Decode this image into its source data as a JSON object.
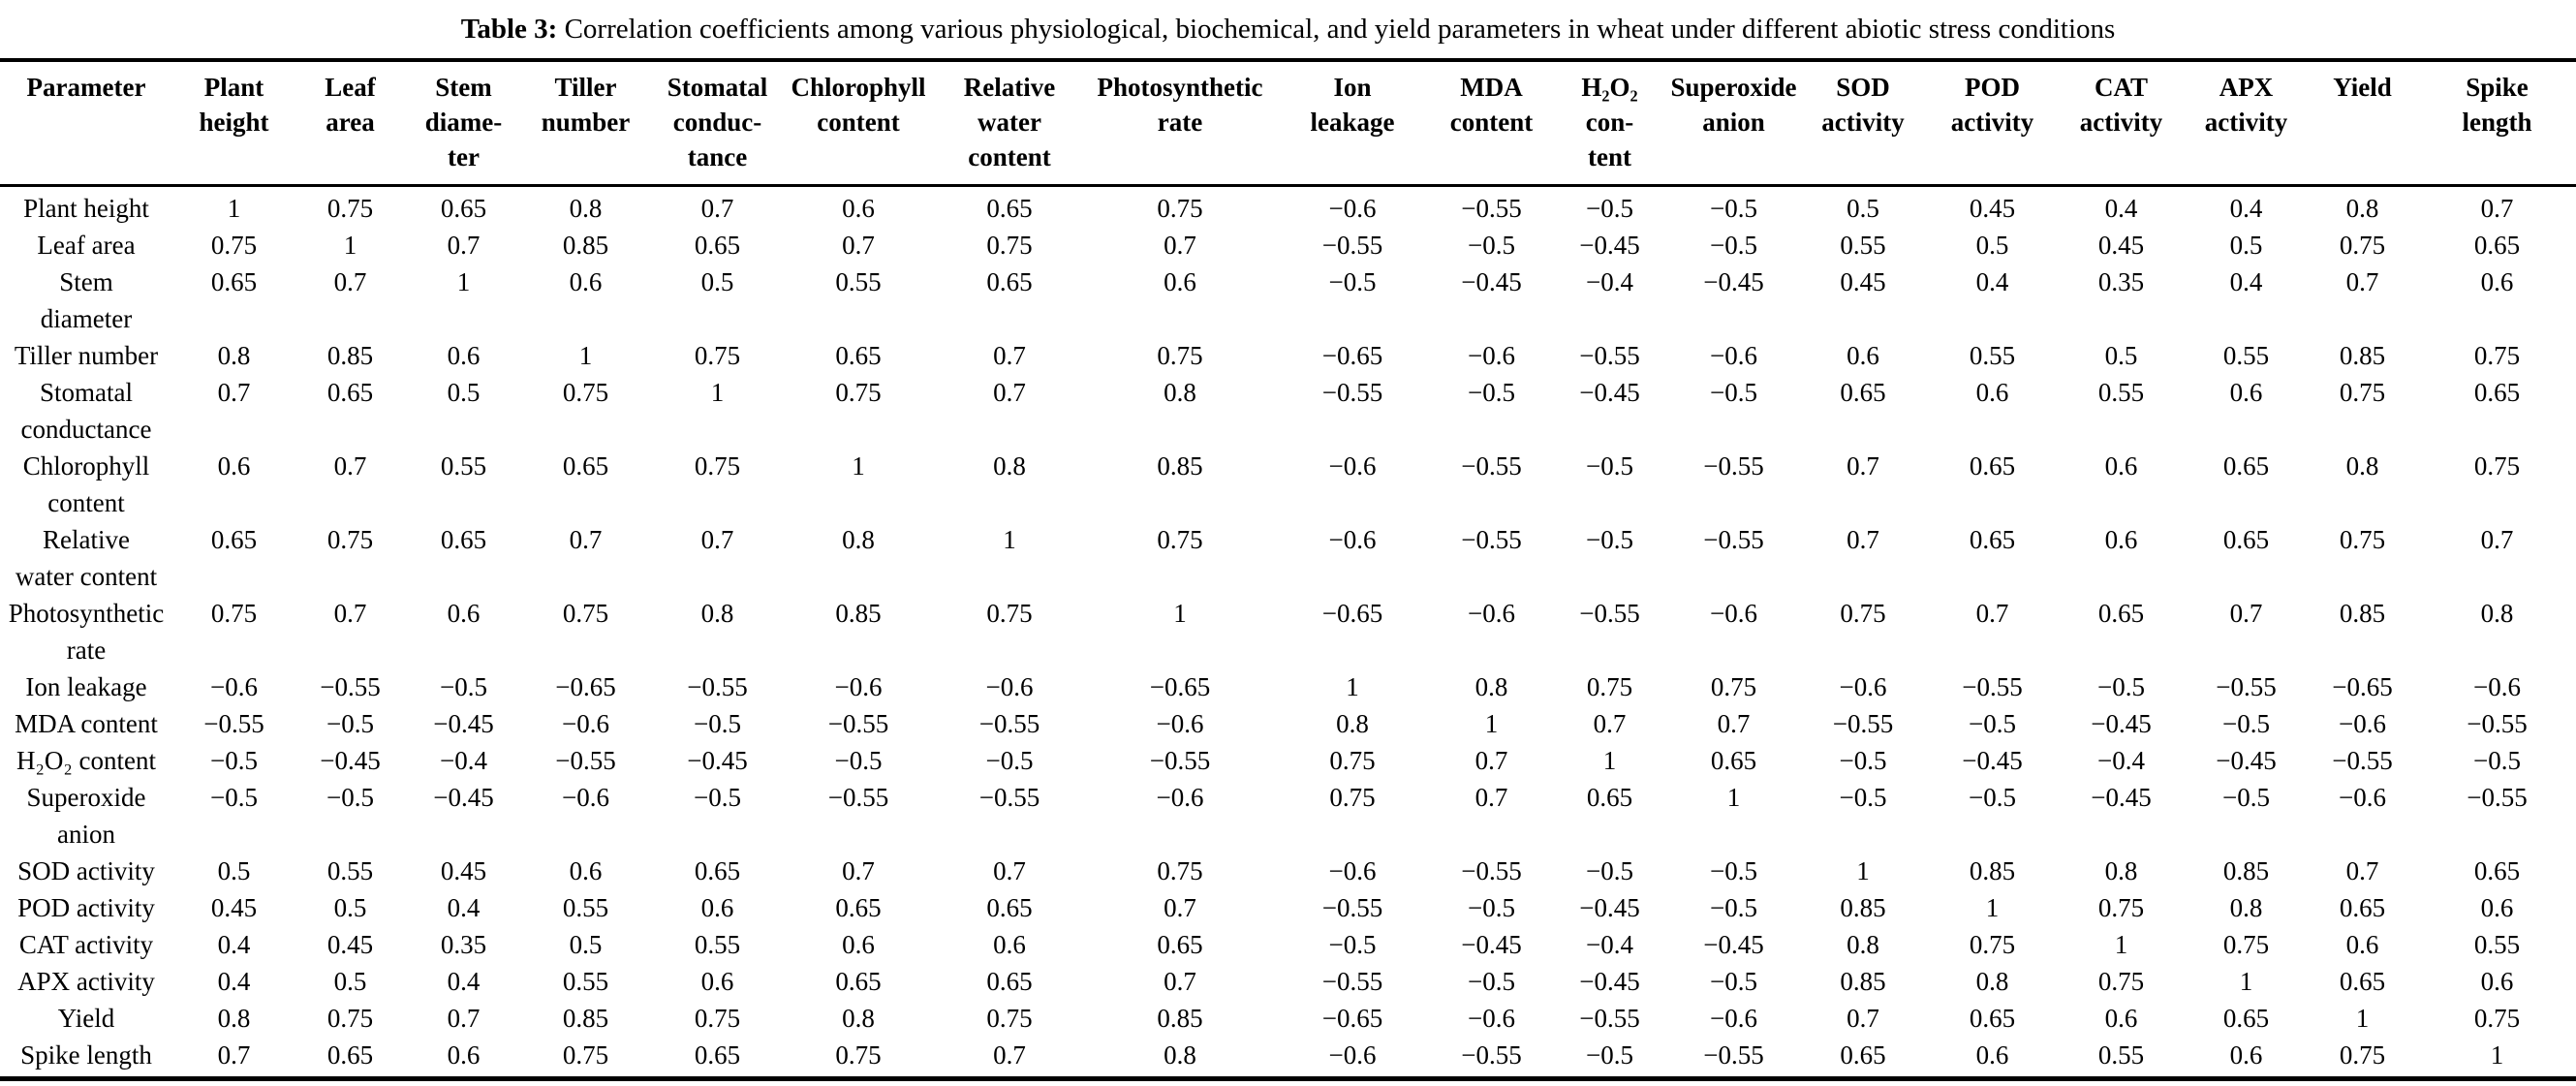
{
  "caption": {
    "label": "Table 3:",
    "text": "Correlation coefficients among various physiological, biochemical, and yield parameters in wheat under different abiotic stress conditions"
  },
  "table": {
    "columns": [
      {
        "lines": [
          "Parameter"
        ]
      },
      {
        "lines": [
          "Plant",
          "height"
        ]
      },
      {
        "lines": [
          "Leaf",
          "area"
        ]
      },
      {
        "lines": [
          "Stem",
          "diame-",
          "ter"
        ]
      },
      {
        "lines": [
          "Tiller",
          "number"
        ]
      },
      {
        "lines": [
          "Stomatal",
          "conduc-",
          "tance"
        ]
      },
      {
        "lines": [
          "Chlorophyll",
          "content"
        ]
      },
      {
        "lines": [
          "Relative",
          "water",
          "content"
        ]
      },
      {
        "lines": [
          "Photosynthetic",
          "rate"
        ]
      },
      {
        "lines": [
          "Ion",
          "leakage"
        ]
      },
      {
        "lines": [
          "MDA",
          "content"
        ]
      },
      {
        "lines": [
          "H₂O₂",
          "con-",
          "tent"
        ]
      },
      {
        "lines": [
          "Superoxide",
          "anion"
        ]
      },
      {
        "lines": [
          "SOD",
          "activity"
        ]
      },
      {
        "lines": [
          "POD",
          "activity"
        ]
      },
      {
        "lines": [
          "CAT",
          "activity"
        ]
      },
      {
        "lines": [
          "APX",
          "activity"
        ]
      },
      {
        "lines": [
          "Yield"
        ]
      },
      {
        "lines": [
          "Spike",
          "length"
        ]
      }
    ],
    "rows": [
      {
        "label_lines": [
          "Plant height"
        ],
        "values": [
          "1",
          "0.75",
          "0.65",
          "0.8",
          "0.7",
          "0.6",
          "0.65",
          "0.75",
          "−0.6",
          "−0.55",
          "−0.5",
          "−0.5",
          "0.5",
          "0.45",
          "0.4",
          "0.4",
          "0.8",
          "0.7"
        ]
      },
      {
        "label_lines": [
          "Leaf area"
        ],
        "values": [
          "0.75",
          "1",
          "0.7",
          "0.85",
          "0.65",
          "0.7",
          "0.75",
          "0.7",
          "−0.55",
          "−0.5",
          "−0.45",
          "−0.5",
          "0.55",
          "0.5",
          "0.45",
          "0.5",
          "0.75",
          "0.65"
        ]
      },
      {
        "label_lines": [
          "Stem",
          "diameter"
        ],
        "values": [
          "0.65",
          "0.7",
          "1",
          "0.6",
          "0.5",
          "0.55",
          "0.65",
          "0.6",
          "−0.5",
          "−0.45",
          "−0.4",
          "−0.45",
          "0.45",
          "0.4",
          "0.35",
          "0.4",
          "0.7",
          "0.6"
        ]
      },
      {
        "label_lines": [
          "Tiller number"
        ],
        "values": [
          "0.8",
          "0.85",
          "0.6",
          "1",
          "0.75",
          "0.65",
          "0.7",
          "0.75",
          "−0.65",
          "−0.6",
          "−0.55",
          "−0.6",
          "0.6",
          "0.55",
          "0.5",
          "0.55",
          "0.85",
          "0.75"
        ]
      },
      {
        "label_lines": [
          "Stomatal",
          "conductance"
        ],
        "values": [
          "0.7",
          "0.65",
          "0.5",
          "0.75",
          "1",
          "0.75",
          "0.7",
          "0.8",
          "−0.55",
          "−0.5",
          "−0.45",
          "−0.5",
          "0.65",
          "0.6",
          "0.55",
          "0.6",
          "0.75",
          "0.65"
        ]
      },
      {
        "label_lines": [
          "Chlorophyll",
          "content"
        ],
        "values": [
          "0.6",
          "0.7",
          "0.55",
          "0.65",
          "0.75",
          "1",
          "0.8",
          "0.85",
          "−0.6",
          "−0.55",
          "−0.5",
          "−0.55",
          "0.7",
          "0.65",
          "0.6",
          "0.65",
          "0.8",
          "0.75"
        ]
      },
      {
        "label_lines": [
          "Relative",
          "water content"
        ],
        "values": [
          "0.65",
          "0.75",
          "0.65",
          "0.7",
          "0.7",
          "0.8",
          "1",
          "0.75",
          "−0.6",
          "−0.55",
          "−0.5",
          "−0.55",
          "0.7",
          "0.65",
          "0.6",
          "0.65",
          "0.75",
          "0.7"
        ]
      },
      {
        "label_lines": [
          "Photosynthetic",
          "rate"
        ],
        "values": [
          "0.75",
          "0.7",
          "0.6",
          "0.75",
          "0.8",
          "0.85",
          "0.75",
          "1",
          "−0.65",
          "−0.6",
          "−0.55",
          "−0.6",
          "0.75",
          "0.7",
          "0.65",
          "0.7",
          "0.85",
          "0.8"
        ]
      },
      {
        "label_lines": [
          "Ion leakage"
        ],
        "values": [
          "−0.6",
          "−0.55",
          "−0.5",
          "−0.65",
          "−0.55",
          "−0.6",
          "−0.6",
          "−0.65",
          "1",
          "0.8",
          "0.75",
          "0.75",
          "−0.6",
          "−0.55",
          "−0.5",
          "−0.55",
          "−0.65",
          "−0.6"
        ]
      },
      {
        "label_lines": [
          "MDA content"
        ],
        "values": [
          "−0.55",
          "−0.5",
          "−0.45",
          "−0.6",
          "−0.5",
          "−0.55",
          "−0.55",
          "−0.6",
          "0.8",
          "1",
          "0.7",
          "0.7",
          "−0.55",
          "−0.5",
          "−0.45",
          "−0.5",
          "−0.6",
          "−0.55"
        ]
      },
      {
        "label_lines": [
          "H₂O₂ content"
        ],
        "values": [
          "−0.5",
          "−0.45",
          "−0.4",
          "−0.55",
          "−0.45",
          "−0.5",
          "−0.5",
          "−0.55",
          "0.75",
          "0.7",
          "1",
          "0.65",
          "−0.5",
          "−0.45",
          "−0.4",
          "−0.45",
          "−0.55",
          "−0.5"
        ]
      },
      {
        "label_lines": [
          "Superoxide",
          "anion"
        ],
        "values": [
          "−0.5",
          "−0.5",
          "−0.45",
          "−0.6",
          "−0.5",
          "−0.55",
          "−0.55",
          "−0.6",
          "0.75",
          "0.7",
          "0.65",
          "1",
          "−0.5",
          "−0.5",
          "−0.45",
          "−0.5",
          "−0.6",
          "−0.55"
        ]
      },
      {
        "label_lines": [
          "SOD activity"
        ],
        "values": [
          "0.5",
          "0.55",
          "0.45",
          "0.6",
          "0.65",
          "0.7",
          "0.7",
          "0.75",
          "−0.6",
          "−0.55",
          "−0.5",
          "−0.5",
          "1",
          "0.85",
          "0.8",
          "0.85",
          "0.7",
          "0.65"
        ]
      },
      {
        "label_lines": [
          "POD activity"
        ],
        "values": [
          "0.45",
          "0.5",
          "0.4",
          "0.55",
          "0.6",
          "0.65",
          "0.65",
          "0.7",
          "−0.55",
          "−0.5",
          "−0.45",
          "−0.5",
          "0.85",
          "1",
          "0.75",
          "0.8",
          "0.65",
          "0.6"
        ]
      },
      {
        "label_lines": [
          "CAT activity"
        ],
        "values": [
          "0.4",
          "0.45",
          "0.35",
          "0.5",
          "0.55",
          "0.6",
          "0.6",
          "0.65",
          "−0.5",
          "−0.45",
          "−0.4",
          "−0.45",
          "0.8",
          "0.75",
          "1",
          "0.75",
          "0.6",
          "0.55"
        ]
      },
      {
        "label_lines": [
          "APX activity"
        ],
        "values": [
          "0.4",
          "0.5",
          "0.4",
          "0.55",
          "0.6",
          "0.65",
          "0.65",
          "0.7",
          "−0.55",
          "−0.5",
          "−0.45",
          "−0.5",
          "0.85",
          "0.8",
          "0.75",
          "1",
          "0.65",
          "0.6"
        ]
      },
      {
        "label_lines": [
          "Yield"
        ],
        "values": [
          "0.8",
          "0.75",
          "0.7",
          "0.85",
          "0.75",
          "0.8",
          "0.75",
          "0.85",
          "−0.65",
          "−0.6",
          "−0.55",
          "−0.6",
          "0.7",
          "0.65",
          "0.6",
          "0.65",
          "1",
          "0.75"
        ]
      },
      {
        "label_lines": [
          "Spike length"
        ],
        "values": [
          "0.7",
          "0.65",
          "0.6",
          "0.75",
          "0.65",
          "0.75",
          "0.7",
          "0.8",
          "−0.6",
          "−0.55",
          "−0.5",
          "−0.55",
          "0.65",
          "0.6",
          "0.55",
          "0.6",
          "0.75",
          "1"
        ]
      }
    ]
  }
}
